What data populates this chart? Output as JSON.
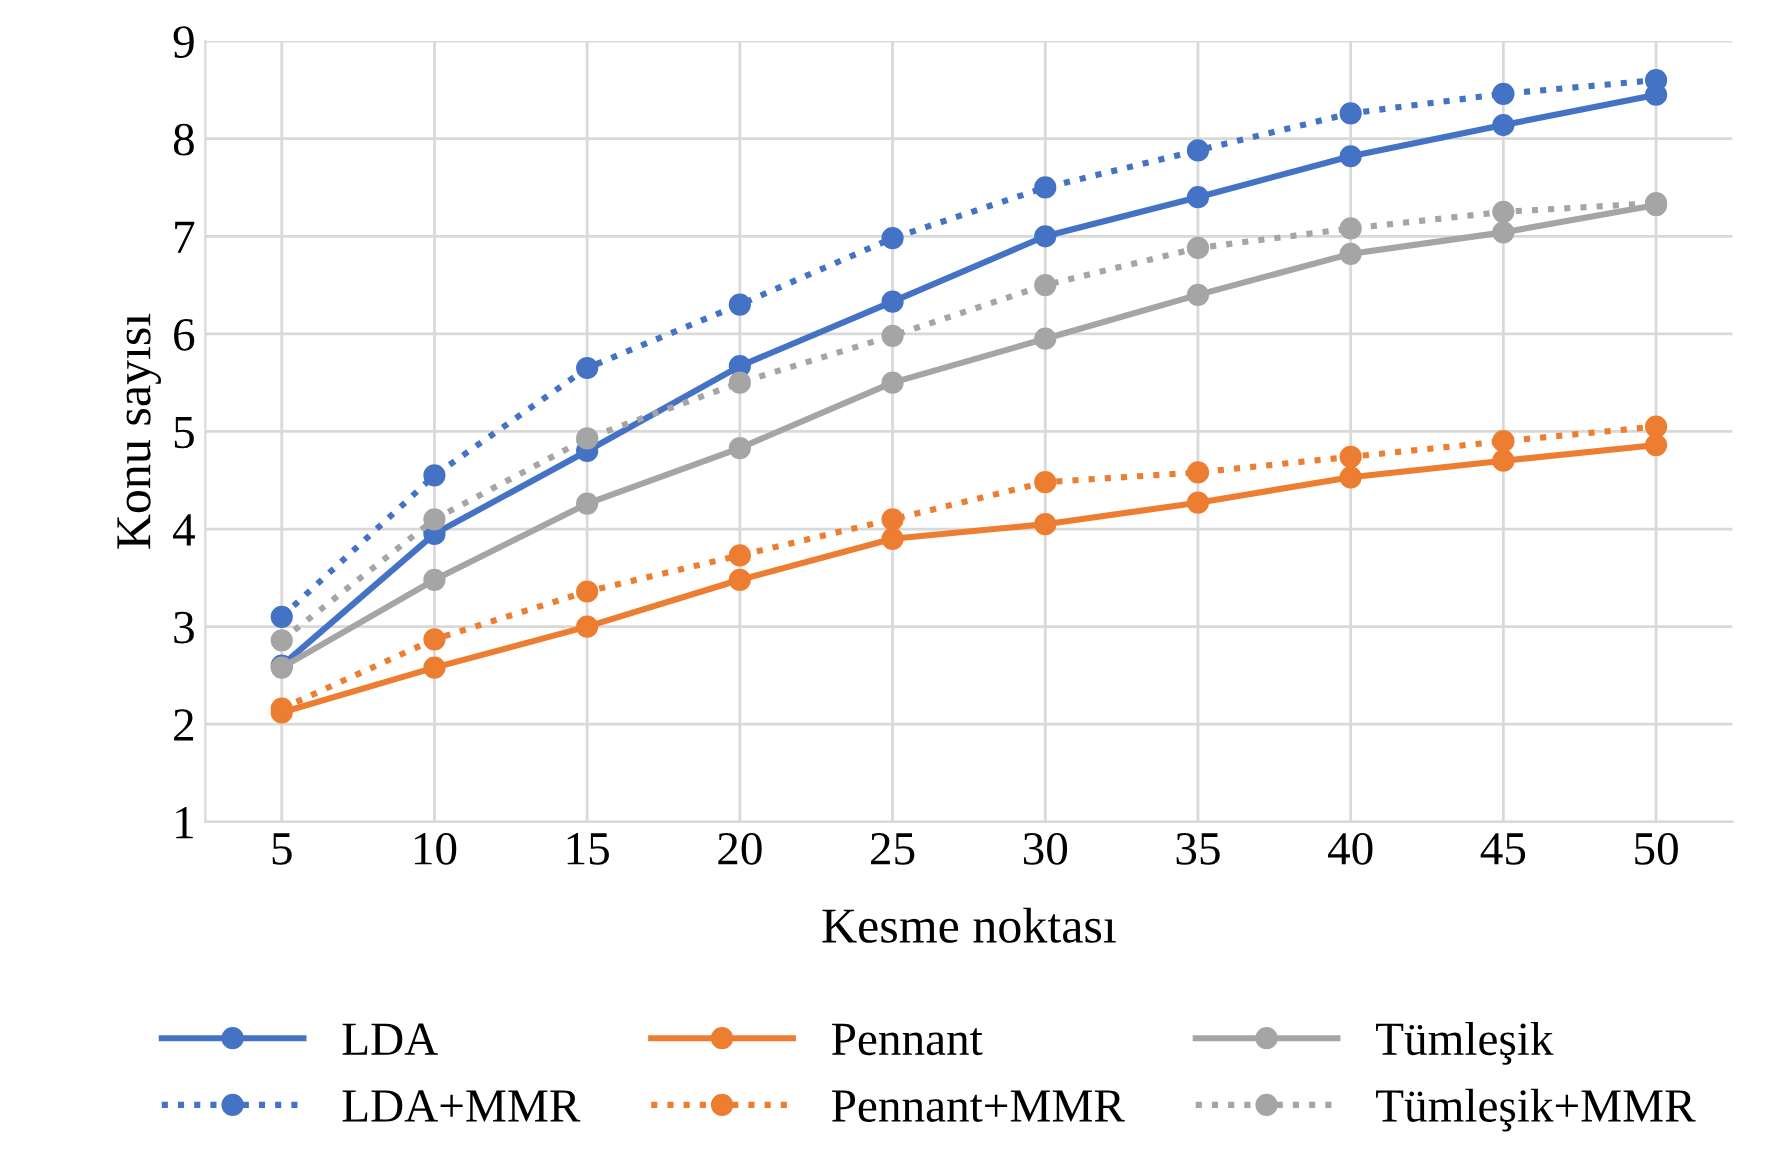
{
  "chart_data": {
    "type": "line",
    "xlabel": "Kesme noktası",
    "ylabel": "Konu sayısı",
    "categories": [
      "5",
      "10",
      "15",
      "20",
      "25",
      "30",
      "35",
      "40",
      "45",
      "50"
    ],
    "ylim": [
      1,
      9
    ],
    "yticks": [
      1,
      2,
      3,
      4,
      5,
      6,
      7,
      8,
      9
    ],
    "grid": true,
    "legend": "bottom",
    "marker": "circle",
    "series": [
      {
        "name": "LDA",
        "color": "#4472c4",
        "line_style": "solid",
        "values": [
          2.6,
          3.95,
          4.8,
          5.67,
          6.33,
          7.0,
          7.4,
          7.82,
          8.14,
          8.45
        ]
      },
      {
        "name": "LDA+MMR",
        "color": "#4472c4",
        "line_style": "dotted",
        "values": [
          3.1,
          4.55,
          5.65,
          6.3,
          6.98,
          7.5,
          7.88,
          8.26,
          8.46,
          8.6
        ]
      },
      {
        "name": "Pennant",
        "color": "#ed7d31",
        "line_style": "solid",
        "values": [
          2.12,
          2.58,
          3.0,
          3.48,
          3.9,
          4.05,
          4.27,
          4.53,
          4.7,
          4.86
        ]
      },
      {
        "name": "Pennant+MMR",
        "color": "#ed7d31",
        "line_style": "dotted",
        "values": [
          2.16,
          2.87,
          3.36,
          3.73,
          4.1,
          4.48,
          4.58,
          4.74,
          4.9,
          5.05
        ]
      },
      {
        "name": "Tümleşik",
        "color": "#a5a5a5",
        "line_style": "solid",
        "values": [
          2.58,
          3.48,
          4.26,
          4.83,
          5.5,
          5.95,
          6.4,
          6.82,
          7.04,
          7.32
        ]
      },
      {
        "name": "Tümleşik+MMR",
        "color": "#a5a5a5",
        "line_style": "dotted",
        "values": [
          2.86,
          4.1,
          4.93,
          5.5,
          5.98,
          6.5,
          6.88,
          7.08,
          7.25,
          7.34
        ]
      }
    ]
  }
}
